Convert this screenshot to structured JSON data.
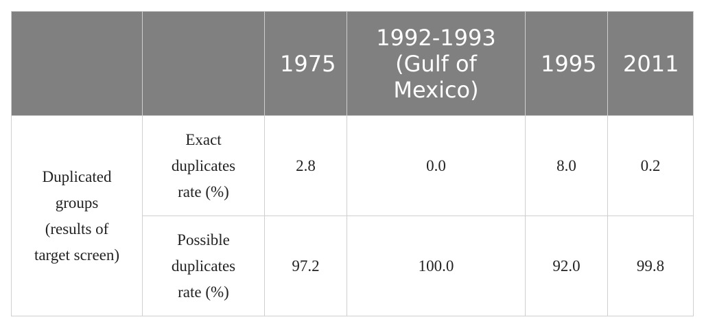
{
  "table": {
    "columns": [
      "1975",
      "1992-1993 (Gulf of Mexico)",
      "1995",
      "2011"
    ],
    "group": "Duplicated groups (results of target screen)",
    "rows": [
      {
        "label": "Exact duplicates rate (%)",
        "values": [
          "2.8",
          "0.0",
          "8.0",
          "0.2"
        ]
      },
      {
        "label": "Possible duplicates rate (%)",
        "values": [
          "97.2",
          "100.0",
          "92.0",
          "99.8"
        ]
      }
    ]
  }
}
